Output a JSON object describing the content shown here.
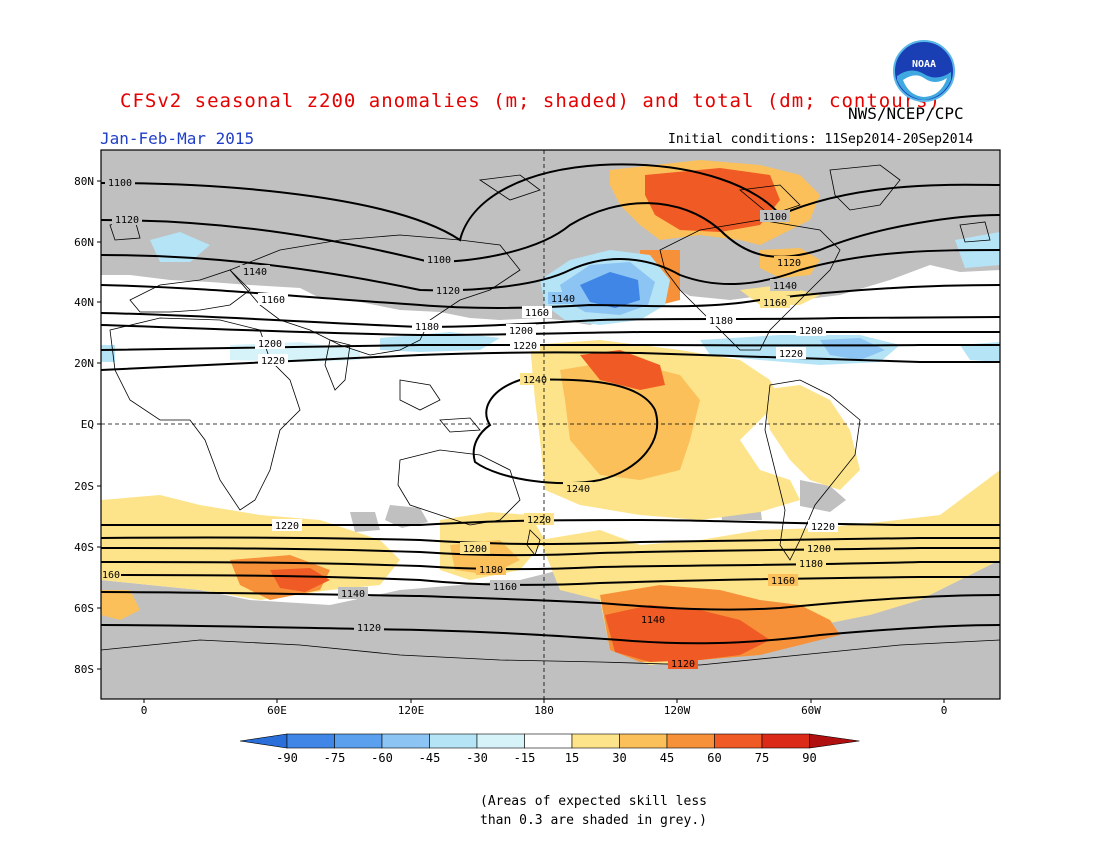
{
  "header": {
    "title": "CFSv2 seasonal z200 anomalies (m; shaded) and total (dm; contours)",
    "agency": "NWS/NCEP/CPC",
    "period": "Jan-Feb-Mar 2015",
    "initial_conditions": "Initial conditions: 11Sep2014-20Sep2014"
  },
  "logo": {
    "icon": "noaa-logo",
    "text": "NOAA"
  },
  "map": {
    "projection": "equirectangular",
    "lat_labels": [
      "80N",
      "60N",
      "40N",
      "20N",
      "EQ",
      "20S",
      "40S",
      "60S",
      "80S"
    ],
    "lon_labels": [
      "0",
      "60E",
      "120E",
      "180",
      "120W",
      "60W",
      "0"
    ],
    "contour_labels": [
      "1100",
      "1120",
      "1140",
      "1160",
      "1180",
      "1200",
      "1220",
      "1240"
    ]
  },
  "colorbar": {
    "ticks": [
      "-90",
      "-75",
      "-60",
      "-45",
      "-30",
      "-15",
      "15",
      "30",
      "45",
      "60",
      "75",
      "90"
    ],
    "colors": [
      "#2a6fd9",
      "#3f86e6",
      "#5aa0ee",
      "#8cc4f4",
      "#b5e4f7",
      "#d7f3fa",
      "#ffffff",
      "#fde48a",
      "#fbc05a",
      "#f6913a",
      "#f05a24",
      "#dc2a18",
      "#b01010"
    ]
  },
  "note": {
    "line1": "(Areas of expected skill less",
    "line2": "than 0.3 are shaded in grey.)"
  },
  "colors": {
    "title": "#e60000",
    "period": "#1f3fc8",
    "skill_grey": "#c0c0c0"
  }
}
